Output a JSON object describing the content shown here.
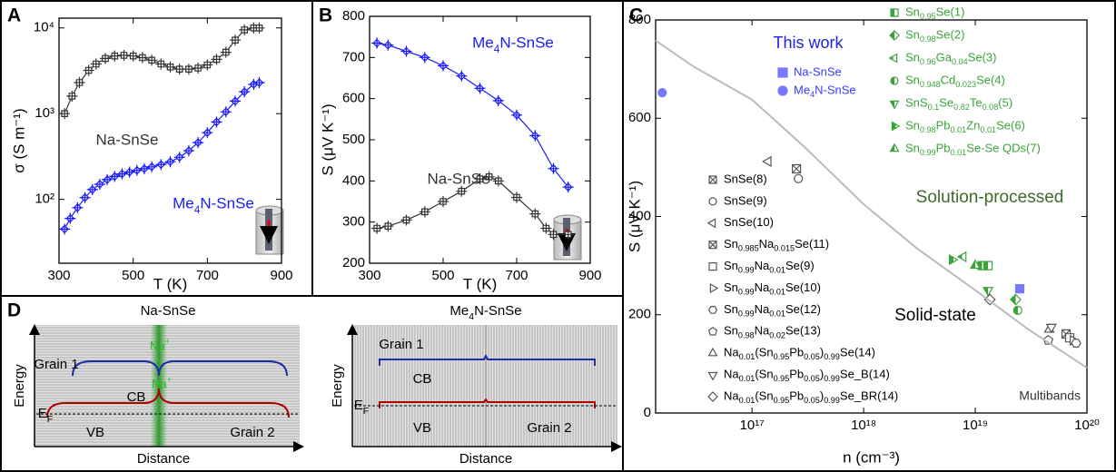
{
  "chart_data": [
    {
      "type": "line",
      "panel_label": "A",
      "x_label": "T (K)",
      "y_label": "σ (S m⁻¹)",
      "log_y": true,
      "xlim": [
        300,
        900
      ],
      "xticks": [
        300,
        500,
        700,
        900
      ],
      "ylim": [
        18,
        13000
      ],
      "yticks": [
        {
          "value": 100,
          "label": "10²"
        },
        {
          "value": 1000,
          "label": "10³"
        },
        {
          "value": 10000,
          "label": "10⁴"
        }
      ],
      "series": [
        {
          "name": "Na-SnSe",
          "color": "#333333",
          "marker": "square-plus",
          "fill": "none",
          "line": true,
          "x": [
            315,
            335,
            355,
            380,
            400,
            425,
            450,
            475,
            500,
            525,
            550,
            575,
            600,
            625,
            650,
            675,
            700,
            725,
            750,
            775,
            800,
            825,
            840
          ],
          "values": [
            1000,
            1600,
            2300,
            3200,
            3800,
            4400,
            4700,
            4800,
            4700,
            4500,
            4200,
            3800,
            3500,
            3300,
            3300,
            3400,
            3700,
            4300,
            5200,
            7200,
            9500,
            10000,
            10000
          ]
        },
        {
          "name": "Me4N-SnSe",
          "color": "#1a1aff",
          "marker": "diamond-plus",
          "fill": "none",
          "line": true,
          "x": [
            315,
            330,
            350,
            370,
            390,
            410,
            430,
            450,
            470,
            490,
            510,
            530,
            550,
            575,
            600,
            625,
            650,
            675,
            700,
            725,
            750,
            775,
            800,
            825,
            840
          ],
          "values": [
            45,
            60,
            80,
            105,
            130,
            150,
            170,
            185,
            198,
            208,
            218,
            228,
            240,
            255,
            275,
            310,
            370,
            460,
            600,
            800,
            1050,
            1400,
            1800,
            2200,
            2300
          ]
        }
      ]
    },
    {
      "type": "line",
      "panel_label": "B",
      "x_label": "T (K)",
      "y_label": "S (μV K⁻¹)",
      "xlim": [
        300,
        900
      ],
      "xticks": [
        300,
        500,
        700,
        900
      ],
      "ylim": [
        200,
        800
      ],
      "yticks": [
        200,
        300,
        400,
        500,
        600,
        700,
        800
      ],
      "series": [
        {
          "name": "Me4N-SnSe",
          "color": "#1a1aff",
          "marker": "diamond-plus",
          "fill": "none",
          "line": true,
          "x": [
            320,
            350,
            400,
            450,
            500,
            550,
            600,
            650,
            700,
            750,
            800,
            840
          ],
          "values": [
            735,
            730,
            715,
            700,
            680,
            655,
            625,
            595,
            560,
            510,
            430,
            385
          ]
        },
        {
          "name": "Na-SnSe",
          "color": "#333333",
          "marker": "square-plus",
          "fill": "none",
          "line": true,
          "x": [
            320,
            350,
            400,
            450,
            500,
            550,
            600,
            625,
            650,
            700,
            750,
            780,
            800,
            840
          ],
          "values": [
            285,
            290,
            305,
            325,
            350,
            375,
            405,
            410,
            400,
            360,
            320,
            285,
            270,
            270
          ]
        }
      ]
    },
    {
      "type": "scatter",
      "panel_label": "C",
      "x_label": "n (cm⁻³)",
      "y_label": "S (μV K⁻¹)",
      "log_x": true,
      "xlim": [
        1.37e+16,
        1e+20
      ],
      "xticks": [
        {
          "value": 1e+17,
          "label": "10¹⁷"
        },
        {
          "value": 1e+18,
          "label": "10¹⁸"
        },
        {
          "value": 1e+19,
          "label": "10¹⁹"
        },
        {
          "value": 1e+20,
          "label": "10²⁰"
        }
      ],
      "ylim": [
        0,
        800
      ],
      "yticks": [
        0,
        200,
        400,
        600,
        800
      ],
      "annotations": [
        {
          "text": "This work",
          "color": "#2222dd"
        },
        {
          "text": "Solution-processed",
          "color": "#3f6a2a"
        },
        {
          "text": "Solid-state",
          "color": "#000000"
        }
      ],
      "series": [
        {
          "name": "Na-SnSe",
          "color": "#7878ff",
          "marker": "square",
          "fill": "full",
          "x": [
            2.5e+19
          ],
          "values": [
            253
          ]
        },
        {
          "name": "Me4N-SnSe",
          "color": "#7878ff",
          "marker": "circle",
          "fill": "full",
          "x": [
            1.57e+16
          ],
          "values": [
            652
          ]
        },
        {
          "name": "Sn0.95Se(1)",
          "color": "#3aa33a",
          "marker": "square",
          "fill": "half",
          "x": [
            1.15e+19,
            1.3e+19
          ],
          "values": [
            300,
            300
          ]
        },
        {
          "name": "Sn0.98Se(2)",
          "color": "#3aa33a",
          "marker": "diamond",
          "fill": "half",
          "x": [
            2.3e+19
          ],
          "values": [
            231
          ]
        },
        {
          "name": "Sn0.96Ga0.04Se(3)",
          "color": "#3aa33a",
          "marker": "triangle-left",
          "fill": "half",
          "x": [
            7.8e+18
          ],
          "values": [
            318
          ]
        },
        {
          "name": "Sn0.948Cd0.023Se(4)",
          "color": "#3aa33a",
          "marker": "circle",
          "fill": "half",
          "x": [
            2.4e+19
          ],
          "values": [
            209
          ]
        },
        {
          "name": "SnS0.1Se0.82Te0.08(5)",
          "color": "#3aa33a",
          "marker": "triangle-down",
          "fill": "half",
          "x": [
            1.3e+19
          ],
          "values": [
            250
          ]
        },
        {
          "name": "Sn0.98Pb0.01Zn0.01Se(6)",
          "color": "#3aa33a",
          "marker": "triangle-right",
          "fill": "half",
          "x": [
            6.2e+18
          ],
          "values": [
            312
          ]
        },
        {
          "name": "Sn0.99Pb0.01Se-Se QDs(7)",
          "color": "#3aa33a",
          "marker": "triangle-up",
          "fill": "half",
          "x": [
            1e+19
          ],
          "values": [
            300
          ]
        },
        {
          "name": "SnSe(8)",
          "color": "#555555",
          "marker": "square-x",
          "fill": "none",
          "x": [
            2.5e+17
          ],
          "values": [
            497
          ]
        },
        {
          "name": "SnSe(9)",
          "color": "#555555",
          "marker": "circle",
          "fill": "none",
          "x": [
            2.6e+17
          ],
          "values": [
            477
          ]
        },
        {
          "name": "SnSe(10)",
          "color": "#555555",
          "marker": "triangle-left",
          "fill": "none",
          "x": [
            1.4e+17
          ],
          "values": [
            512
          ]
        },
        {
          "name": "Sn0.985Na0.015Se(11)",
          "color": "#555555",
          "marker": "square-x",
          "fill": "none",
          "x": [
            6.5e+19
          ],
          "values": [
            161
          ]
        },
        {
          "name": "Sn0.99Na0.01Se(9)",
          "color": "#555555",
          "marker": "square",
          "fill": "none",
          "x": [
            7e+19
          ],
          "values": [
            153
          ]
        },
        {
          "name": "Sn0.99Na0.01Se(10)",
          "color": "#555555",
          "marker": "triangle-right",
          "fill": "none",
          "x": [
            7.5e+19
          ],
          "values": [
            148
          ]
        },
        {
          "name": "Sn0.99Na0.01Se(12)",
          "color": "#555555",
          "marker": "hexagon",
          "fill": "none",
          "x": [
            8e+19
          ],
          "values": [
            142
          ]
        },
        {
          "name": "Sn0.98Na0.02Se(13)",
          "color": "#555555",
          "marker": "pentagon",
          "fill": "none",
          "x": [
            4.5e+19
          ],
          "values": [
            148
          ]
        },
        {
          "name": "Na0.01(Sn0.95Pb0.05)0.99Se(14)",
          "color": "#555555",
          "marker": "triangle-up",
          "fill": "none",
          "x": [
            4.6e+19
          ],
          "values": [
            170
          ]
        },
        {
          "name": "Na0.01(Sn0.95Pb0.05)0.99Se_B(14)",
          "color": "#555555",
          "marker": "triangle-down",
          "fill": "none",
          "x": [
            4.8e+19
          ],
          "values": [
            175
          ]
        },
        {
          "name": "Na0.01(Sn0.95Pb0.05)0.99Se_BR(14)",
          "color": "#555555",
          "marker": "diamond",
          "fill": "none",
          "x": [
            1.35e+19
          ],
          "values": [
            231
          ]
        },
        {
          "name": "Multibands",
          "color": "#bbbbbb",
          "marker": "none",
          "line": true,
          "x": [
            1.37e+16,
            3e+16,
            1e+17,
            3e+17,
            1e+18,
            3e+18,
            1e+19,
            3e+19,
            1e+20
          ],
          "values": [
            758,
            705,
            638,
            540,
            425,
            335,
            250,
            170,
            92
          ]
        }
      ]
    }
  ],
  "diagram": {
    "panel_label": "D",
    "panels": [
      {
        "title": "Na-SnSe",
        "grain_1": "Grain 1",
        "dopant_cb": "Na+",
        "cb": "CB",
        "dopant_vb": "Na+",
        "ef": "EF",
        "vb": "VB",
        "grain_2": "Grain 2",
        "y_label": "Energy",
        "x_label": "Distance"
      },
      {
        "title": "Me4N-SnSe",
        "grain_1": "Grain 1",
        "cb": "CB",
        "ef": "EF",
        "vb": "VB",
        "grain_2": "Grain 2",
        "y_label": "Energy",
        "x_label": "Distance"
      }
    ]
  }
}
